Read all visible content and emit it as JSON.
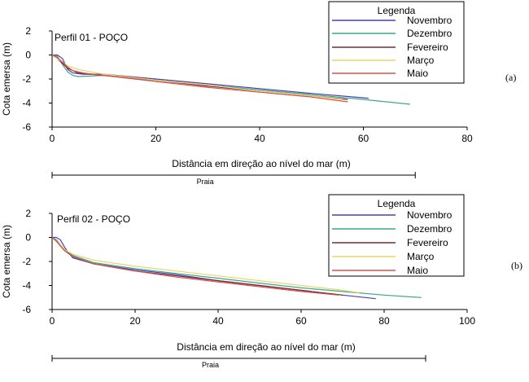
{
  "chart_data": [
    {
      "type": "line",
      "title": "Perfil 01 - POÇO",
      "panel_label": "(a)",
      "xlabel": "Distância em direção ao nível do mar (m)",
      "ylabel": "Cota emersa (m)",
      "xlim": [
        0,
        80
      ],
      "ylim": [
        -6,
        2
      ],
      "xticks": [
        0,
        20,
        40,
        60,
        80
      ],
      "yticks": [
        2,
        0,
        -2,
        -4,
        -6
      ],
      "grid": false,
      "legend_title": "Legenda",
      "legend_position": "top-right",
      "beach_label": "Praia",
      "beach_range": [
        0,
        70
      ],
      "series": [
        {
          "name": "Novembro",
          "color": "#4a3fb5",
          "x": [
            0,
            1,
            2,
            3,
            4,
            6,
            10,
            20,
            30,
            40,
            50,
            61
          ],
          "y": [
            0,
            0,
            -0.3,
            -1.2,
            -1.5,
            -1.6,
            -1.6,
            -2.0,
            -2.4,
            -2.8,
            -3.2,
            -3.6
          ]
        },
        {
          "name": "Dezembro",
          "color": "#3aa88a",
          "x": [
            0,
            1,
            2,
            3,
            4,
            5,
            10,
            20,
            30,
            40,
            50,
            60,
            69
          ],
          "y": [
            0,
            -0.1,
            -0.8,
            -1.4,
            -1.7,
            -1.8,
            -1.7,
            -2.1,
            -2.5,
            -2.9,
            -3.3,
            -3.7,
            -4.1
          ]
        },
        {
          "name": "Fevereiro",
          "color": "#7a2a30",
          "x": [
            0,
            1,
            2,
            3,
            5,
            10,
            20,
            30,
            40,
            50,
            57
          ],
          "y": [
            0,
            -0.3,
            -0.7,
            -1.1,
            -1.5,
            -1.7,
            -2.1,
            -2.6,
            -3.0,
            -3.4,
            -3.7
          ]
        },
        {
          "name": "Março",
          "color": "#e8d66a",
          "x": [
            0,
            1,
            2,
            3,
            5,
            10,
            20,
            30,
            40,
            50,
            56
          ],
          "y": [
            0,
            -0.3,
            -0.6,
            -0.9,
            -1.2,
            -1.6,
            -2.1,
            -2.5,
            -3.0,
            -3.4,
            -3.7
          ]
        },
        {
          "name": "Maio",
          "color": "#d9504a",
          "x": [
            0,
            1,
            2,
            3,
            4,
            6,
            10,
            20,
            30,
            40,
            50,
            57
          ],
          "y": [
            0,
            -0.2,
            -0.6,
            -1.0,
            -1.3,
            -1.5,
            -1.7,
            -2.2,
            -2.7,
            -3.1,
            -3.5,
            -3.9
          ]
        }
      ]
    },
    {
      "type": "line",
      "title": "Perfil 02 - POÇO",
      "panel_label": "(b)",
      "xlabel": "Distância em direção ao nível do mar (m)",
      "ylabel": "Cota emersa (m)",
      "xlim": [
        0,
        100
      ],
      "ylim": [
        -6,
        2
      ],
      "xticks": [
        0,
        20,
        40,
        60,
        80,
        100
      ],
      "yticks": [
        2,
        0,
        -2,
        -4,
        -6
      ],
      "grid": false,
      "legend_title": "Legenda",
      "legend_position": "top-right",
      "beach_label": "Praia",
      "beach_range": [
        0,
        90
      ],
      "series": [
        {
          "name": "Novembro",
          "color": "#4a3fb5",
          "x": [
            0,
            1,
            2,
            3,
            4,
            5,
            10,
            20,
            30,
            40,
            50,
            60,
            70,
            78
          ],
          "y": [
            0,
            0,
            -0.2,
            -0.8,
            -1.3,
            -1.7,
            -2.2,
            -2.7,
            -3.1,
            -3.6,
            -4.0,
            -4.4,
            -4.8,
            -5.1
          ]
        },
        {
          "name": "Dezembro",
          "color": "#3aa88a",
          "x": [
            0,
            1,
            2,
            3,
            5,
            10,
            20,
            30,
            40,
            50,
            60,
            70,
            80,
            89
          ],
          "y": [
            0,
            -0.2,
            -0.6,
            -1.0,
            -1.5,
            -2.1,
            -2.6,
            -3.0,
            -3.4,
            -3.8,
            -4.2,
            -4.5,
            -4.8,
            -5.0
          ]
        },
        {
          "name": "Fevereiro",
          "color": "#7a2a30",
          "x": [
            0,
            1,
            2,
            3,
            5,
            10,
            20,
            30,
            40,
            50,
            60,
            70
          ],
          "y": [
            0,
            -0.3,
            -0.7,
            -1.1,
            -1.6,
            -2.2,
            -2.8,
            -3.2,
            -3.6,
            -4.0,
            -4.4,
            -4.8
          ]
        },
        {
          "name": "Março",
          "color": "#e8d66a",
          "x": [
            0,
            1,
            2,
            3,
            5,
            10,
            20,
            30,
            40,
            50,
            60,
            70,
            74
          ],
          "y": [
            0,
            -0.3,
            -0.6,
            -1.0,
            -1.4,
            -1.9,
            -2.4,
            -2.8,
            -3.2,
            -3.6,
            -4.0,
            -4.4,
            -4.6
          ]
        },
        {
          "name": "Maio",
          "color": "#d9504a",
          "x": [
            0,
            1,
            2,
            3,
            5,
            10,
            20,
            30,
            40,
            50,
            60,
            69
          ],
          "y": [
            0,
            -0.3,
            -0.7,
            -1.1,
            -1.6,
            -2.2,
            -2.8,
            -3.3,
            -3.7,
            -4.1,
            -4.5,
            -4.8
          ]
        }
      ]
    }
  ]
}
